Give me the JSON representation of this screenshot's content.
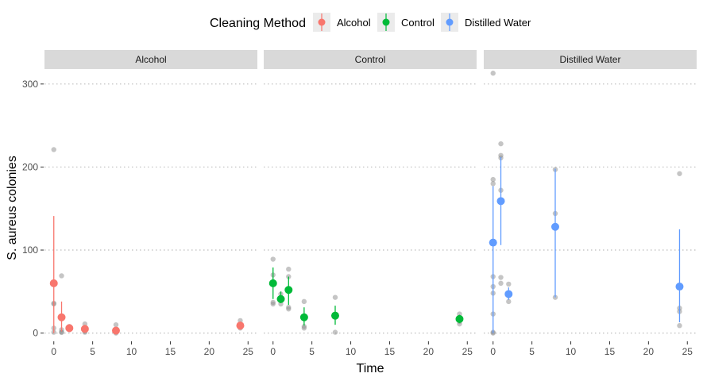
{
  "chart_data": {
    "type": "scatter",
    "xlabel": "Time",
    "ylabel": "S. aureus colonies",
    "xlim": [
      -1.2,
      26.2
    ],
    "ylim": [
      -8,
      318
    ],
    "x_ticks": [
      0,
      5,
      10,
      15,
      20,
      25
    ],
    "y_ticks": [
      0,
      100,
      200,
      300
    ],
    "grid": "horizontal dotted major gridlines",
    "legend": {
      "title": "Cleaning Method",
      "position": "top",
      "entries": [
        {
          "label": "Alcohol",
          "color": "#F8766D"
        },
        {
          "label": "Control",
          "color": "#00BA38"
        },
        {
          "label": "Distilled Water",
          "color": "#619CFF"
        }
      ]
    },
    "panels": [
      {
        "label": "Alcohol",
        "color": "#F8766D",
        "means": [
          {
            "x": 0,
            "y": 60,
            "low": 0,
            "high": 141
          },
          {
            "x": 1,
            "y": 19,
            "low": 2,
            "high": 38
          },
          {
            "x": 2,
            "y": 6,
            "low": 2,
            "high": 9
          },
          {
            "x": 4,
            "y": 5,
            "low": 1,
            "high": 10
          },
          {
            "x": 8,
            "y": 3,
            "low": 0,
            "high": 7
          },
          {
            "x": 24,
            "y": 9,
            "low": 4,
            "high": 14
          }
        ],
        "raw": [
          {
            "x": 0,
            "y": 221
          },
          {
            "x": 0,
            "y": 36
          },
          {
            "x": 0,
            "y": 35
          },
          {
            "x": 0,
            "y": 6
          },
          {
            "x": 0,
            "y": 1
          },
          {
            "x": 1,
            "y": 69
          },
          {
            "x": 1,
            "y": 4
          },
          {
            "x": 1,
            "y": 1
          },
          {
            "x": 1,
            "y": 1
          },
          {
            "x": 2,
            "y": 8
          },
          {
            "x": 2,
            "y": 5
          },
          {
            "x": 2,
            "y": 4
          },
          {
            "x": 4,
            "y": 11
          },
          {
            "x": 4,
            "y": 2
          },
          {
            "x": 4,
            "y": 1
          },
          {
            "x": 8,
            "y": 10
          },
          {
            "x": 8,
            "y": 1
          },
          {
            "x": 8,
            "y": 0
          },
          {
            "x": 24,
            "y": 15
          },
          {
            "x": 24,
            "y": 8
          },
          {
            "x": 24,
            "y": 6
          }
        ]
      },
      {
        "label": "Control",
        "color": "#00BA38",
        "means": [
          {
            "x": 0,
            "y": 60,
            "low": 41,
            "high": 79
          },
          {
            "x": 1,
            "y": 41,
            "low": 36,
            "high": 50
          },
          {
            "x": 2,
            "y": 52,
            "low": 34,
            "high": 68
          },
          {
            "x": 4,
            "y": 19,
            "low": 9,
            "high": 31
          },
          {
            "x": 8,
            "y": 21,
            "low": 10,
            "high": 33
          },
          {
            "x": 24,
            "y": 17,
            "low": 12,
            "high": 22
          }
        ],
        "raw": [
          {
            "x": 0,
            "y": 89
          },
          {
            "x": 0,
            "y": 70
          },
          {
            "x": 0,
            "y": 37
          },
          {
            "x": 0,
            "y": 35
          },
          {
            "x": 1,
            "y": 47
          },
          {
            "x": 1,
            "y": 40
          },
          {
            "x": 1,
            "y": 35
          },
          {
            "x": 2,
            "y": 77
          },
          {
            "x": 2,
            "y": 68
          },
          {
            "x": 2,
            "y": 31
          },
          {
            "x": 2,
            "y": 29
          },
          {
            "x": 4,
            "y": 38
          },
          {
            "x": 4,
            "y": 8
          },
          {
            "x": 4,
            "y": 6
          },
          {
            "x": 8,
            "y": 43
          },
          {
            "x": 8,
            "y": 20
          },
          {
            "x": 8,
            "y": 1
          },
          {
            "x": 24,
            "y": 23
          },
          {
            "x": 24,
            "y": 14
          },
          {
            "x": 24,
            "y": 11
          }
        ]
      },
      {
        "label": "Distilled Water",
        "color": "#619CFF",
        "means": [
          {
            "x": 0,
            "y": 109,
            "low": 0,
            "high": 177
          },
          {
            "x": 1,
            "y": 159,
            "low": 106,
            "high": 212
          },
          {
            "x": 2,
            "y": 47,
            "low": 40,
            "high": 55
          },
          {
            "x": 8,
            "y": 128,
            "low": 43,
            "high": 198
          },
          {
            "x": 24,
            "y": 56,
            "low": 13,
            "high": 125
          }
        ],
        "raw": [
          {
            "x": 0,
            "y": 313
          },
          {
            "x": 0,
            "y": 185
          },
          {
            "x": 0,
            "y": 180
          },
          {
            "x": 0,
            "y": 68
          },
          {
            "x": 0,
            "y": 56
          },
          {
            "x": 0,
            "y": 48
          },
          {
            "x": 0,
            "y": 23
          },
          {
            "x": 0,
            "y": 1
          },
          {
            "x": 0,
            "y": 0
          },
          {
            "x": 1,
            "y": 228
          },
          {
            "x": 1,
            "y": 214
          },
          {
            "x": 1,
            "y": 211
          },
          {
            "x": 1,
            "y": 172
          },
          {
            "x": 1,
            "y": 67
          },
          {
            "x": 1,
            "y": 60
          },
          {
            "x": 2,
            "y": 59
          },
          {
            "x": 2,
            "y": 45
          },
          {
            "x": 2,
            "y": 38
          },
          {
            "x": 8,
            "y": 197
          },
          {
            "x": 8,
            "y": 144
          },
          {
            "x": 8,
            "y": 43
          },
          {
            "x": 24,
            "y": 192
          },
          {
            "x": 24,
            "y": 30
          },
          {
            "x": 24,
            "y": 26
          },
          {
            "x": 24,
            "y": 9
          }
        ]
      }
    ]
  }
}
